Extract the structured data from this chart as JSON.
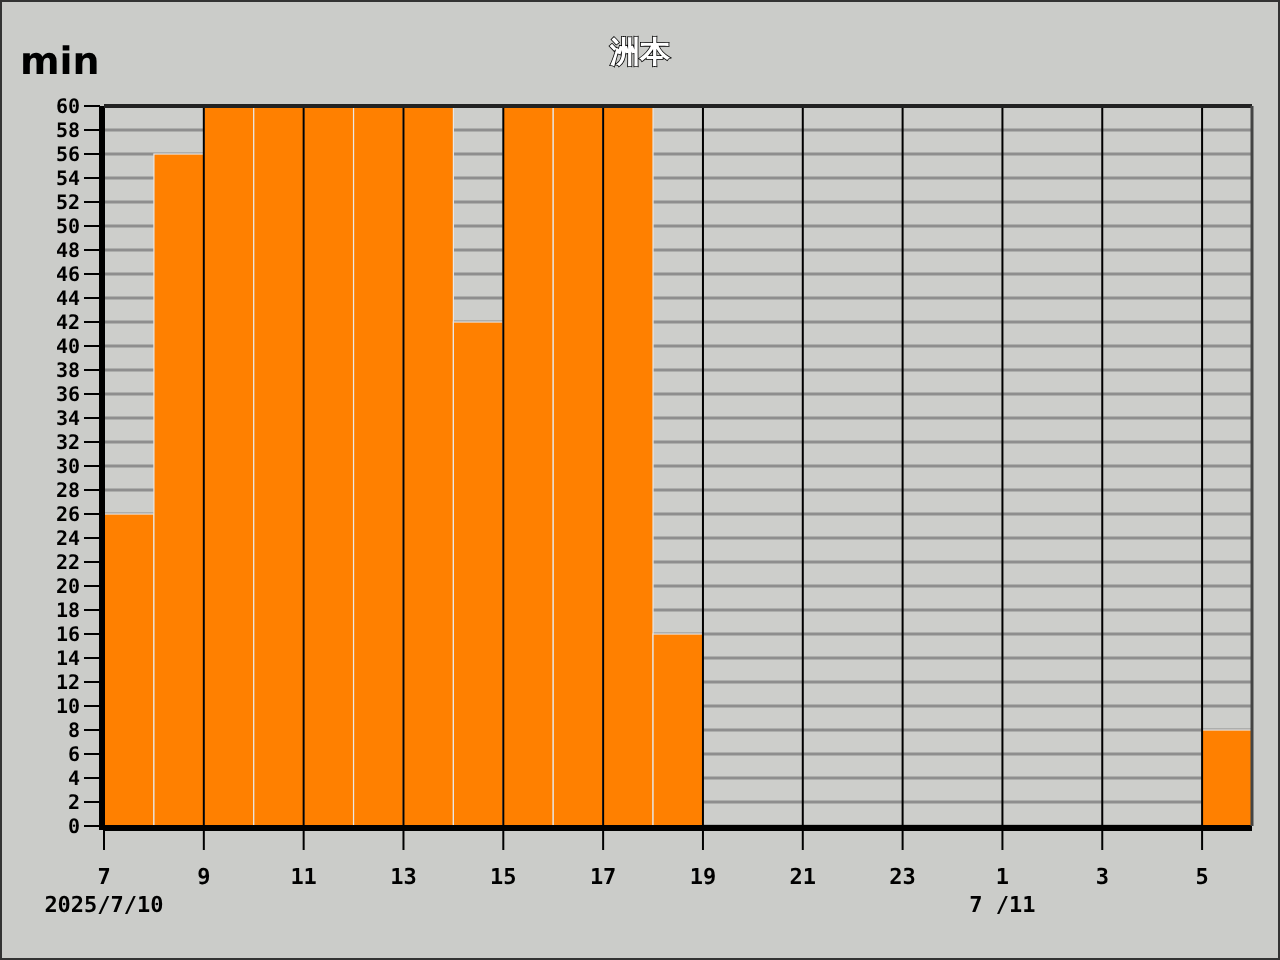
{
  "chart_data": {
    "type": "bar",
    "title": "洲本",
    "ylabel": "min",
    "x": [
      "2025-07-10T07:30",
      "2025-07-10T08:30",
      "2025-07-10T09:30",
      "2025-07-10T10:30",
      "2025-07-10T11:30",
      "2025-07-10T12:30",
      "2025-07-10T13:30",
      "2025-07-10T14:30",
      "2025-07-10T15:30",
      "2025-07-10T16:30",
      "2025-07-10T17:30",
      "2025-07-10T18:30",
      "2025-07-10T19:30",
      "2025-07-10T20:30",
      "2025-07-10T21:30",
      "2025-07-10T22:30",
      "2025-07-10T23:30",
      "2025-07-11T00:30",
      "2025-07-11T01:30",
      "2025-07-11T02:30",
      "2025-07-11T03:30",
      "2025-07-11T04:30",
      "2025-07-11T05:30"
    ],
    "values": [
      26,
      56,
      60,
      60,
      60,
      60,
      60,
      42,
      60,
      60,
      60,
      16,
      0,
      0,
      0,
      0,
      0,
      0,
      0,
      0,
      0,
      0,
      8
    ],
    "color": "#ff8000",
    "xlim": [
      "2025-07-10T07:00",
      "2025-07-11T06:00"
    ],
    "xticks": [
      {
        "value": "2025-07-10T07:00",
        "label": "7\n2025/7/10"
      },
      {
        "value": "2025-07-10T09:00",
        "label": "9"
      },
      {
        "value": "2025-07-10T11:00",
        "label": "11"
      },
      {
        "value": "2025-07-10T13:00",
        "label": "13"
      },
      {
        "value": "2025-07-10T15:00",
        "label": "15"
      },
      {
        "value": "2025-07-10T17:00",
        "label": "17"
      },
      {
        "value": "2025-07-10T19:00",
        "label": "19"
      },
      {
        "value": "2025-07-10T21:00",
        "label": "21"
      },
      {
        "value": "2025-07-10T23:00",
        "label": "23"
      },
      {
        "value": "2025-07-11T01:00",
        "label": "1\n7 /11"
      },
      {
        "value": "2025-07-11T03:00",
        "label": "3"
      },
      {
        "value": "2025-07-11T05:00",
        "label": "5"
      }
    ],
    "ylim": [
      0,
      60
    ],
    "yticks": [
      0,
      2,
      4,
      6,
      8,
      10,
      12,
      14,
      16,
      18,
      20,
      22,
      24,
      26,
      28,
      30,
      32,
      34,
      36,
      38,
      40,
      42,
      44,
      46,
      48,
      50,
      52,
      54,
      56,
      58,
      60
    ],
    "grid": true
  }
}
